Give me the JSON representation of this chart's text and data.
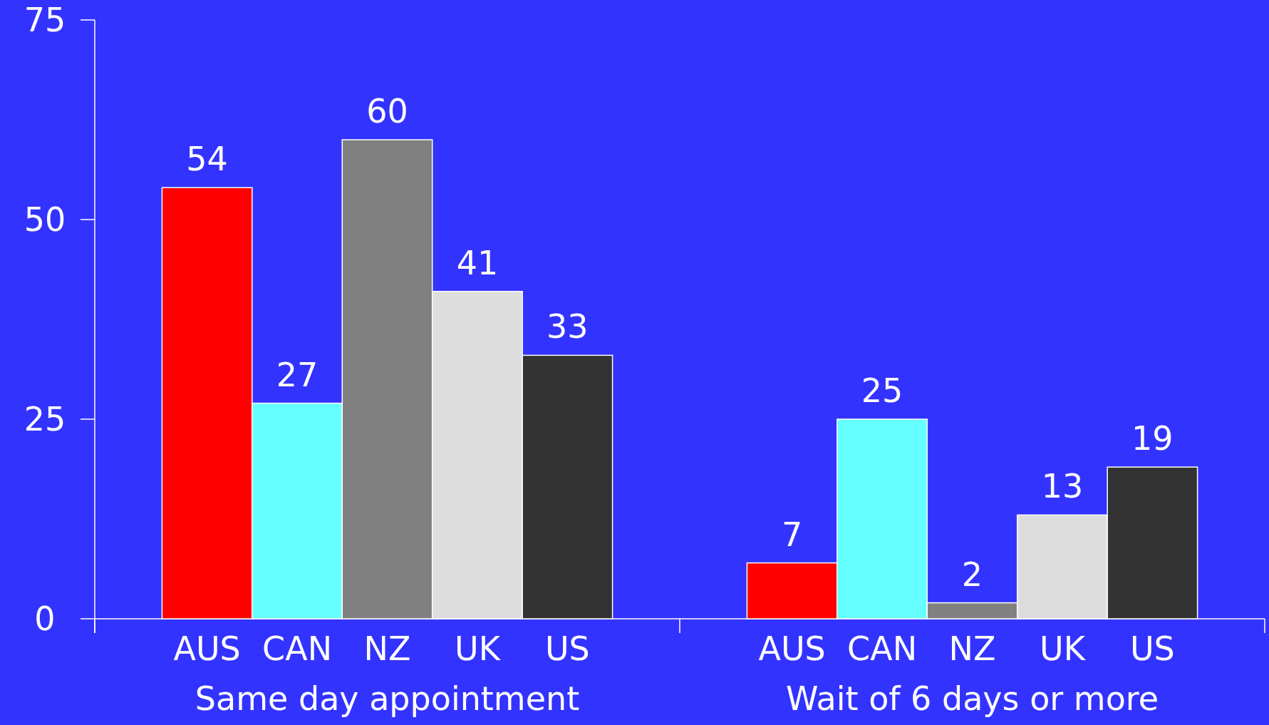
{
  "chart_data": {
    "type": "bar",
    "categories": [
      "Same day appointment",
      "Wait of 6 days or more"
    ],
    "series": [
      {
        "name": "AUS",
        "color": "#ff0000",
        "values": [
          54,
          7
        ]
      },
      {
        "name": "CAN",
        "color": "#66ffff",
        "values": [
          27,
          25
        ]
      },
      {
        "name": "NZ",
        "color": "#808080",
        "values": [
          60,
          2
        ]
      },
      {
        "name": "UK",
        "color": "#dddddd",
        "values": [
          41,
          13
        ]
      },
      {
        "name": "US",
        "color": "#333333",
        "values": [
          33,
          19
        ]
      }
    ],
    "ylim": [
      0,
      75
    ],
    "yticks": [
      0,
      25,
      50,
      75
    ],
    "data_labels": true,
    "grid": false
  }
}
